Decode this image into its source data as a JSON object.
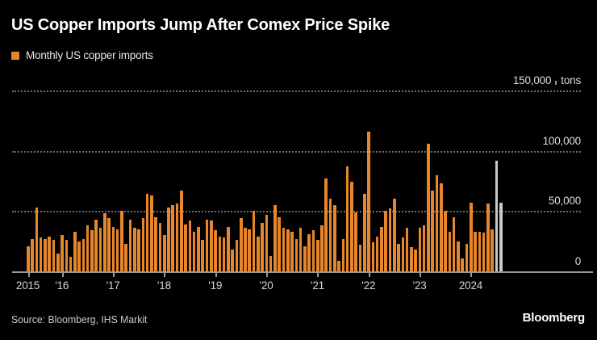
{
  "title": "US Copper Imports Jump After Comex Price Spike",
  "legend": {
    "label": "Monthly US copper imports",
    "swatch_color": "#E8862B"
  },
  "source": "Source: Bloomberg, IHS Markit",
  "brand": "Bloomberg",
  "colors": {
    "background": "#000000",
    "bar": "#E8862B",
    "bar_recent": "#C9C9C9",
    "grid": "#6F6F6F",
    "axis": "#9A9A9A",
    "title_text": "#FFFFFF",
    "axis_text": "#D4D4D4",
    "source_text": "#CCCCCC"
  },
  "y_axis": {
    "unit": "tons",
    "tick_values": [
      150000,
      100000,
      50000,
      0
    ],
    "tick_labels": [
      "150,000",
      "100,000",
      "50,000",
      "0"
    ]
  },
  "x_axis": {
    "tick_labels": [
      "2015",
      "'16",
      "'17",
      "'18",
      "'19",
      "'20",
      "'21",
      "'22",
      "'23",
      "2024"
    ],
    "tick_month_indices": [
      0,
      8,
      20,
      32,
      44,
      56,
      68,
      80,
      92,
      104
    ]
  },
  "chart_data": {
    "type": "bar",
    "title": "US Copper Imports Jump After Comex Price Spike",
    "series_name": "Monthly US copper imports",
    "unit": "tons",
    "ylim": [
      0,
      150000
    ],
    "grid": "dotted-horizontal",
    "legend_position": "top-left",
    "start_month": "2015-05",
    "end_month": "2024-08",
    "highlight_last_n": 2,
    "highlight_color": "#C9C9C9",
    "months": [
      "2015-05",
      "2015-06",
      "2015-07",
      "2015-08",
      "2015-09",
      "2015-10",
      "2015-11",
      "2015-12",
      "2016-01",
      "2016-02",
      "2016-03",
      "2016-04",
      "2016-05",
      "2016-06",
      "2016-07",
      "2016-08",
      "2016-09",
      "2016-10",
      "2016-11",
      "2016-12",
      "2017-01",
      "2017-02",
      "2017-03",
      "2017-04",
      "2017-05",
      "2017-06",
      "2017-07",
      "2017-08",
      "2017-09",
      "2017-10",
      "2017-11",
      "2017-12",
      "2018-01",
      "2018-02",
      "2018-03",
      "2018-04",
      "2018-05",
      "2018-06",
      "2018-07",
      "2018-08",
      "2018-09",
      "2018-10",
      "2018-11",
      "2018-12",
      "2019-01",
      "2019-02",
      "2019-03",
      "2019-04",
      "2019-05",
      "2019-06",
      "2019-07",
      "2019-08",
      "2019-09",
      "2019-10",
      "2019-11",
      "2019-12",
      "2020-01",
      "2020-02",
      "2020-03",
      "2020-04",
      "2020-05",
      "2020-06",
      "2020-07",
      "2020-08",
      "2020-09",
      "2020-10",
      "2020-11",
      "2020-12",
      "2021-01",
      "2021-02",
      "2021-03",
      "2021-04",
      "2021-05",
      "2021-06",
      "2021-07",
      "2021-08",
      "2021-09",
      "2021-10",
      "2021-11",
      "2021-12",
      "2022-01",
      "2022-02",
      "2022-03",
      "2022-04",
      "2022-05",
      "2022-06",
      "2022-07",
      "2022-08",
      "2022-09",
      "2022-10",
      "2022-11",
      "2022-12",
      "2023-01",
      "2023-02",
      "2023-03",
      "2023-04",
      "2023-05",
      "2023-06",
      "2023-07",
      "2023-08",
      "2023-09",
      "2023-10",
      "2023-11",
      "2023-12",
      "2024-01",
      "2024-02",
      "2024-03",
      "2024-04",
      "2024-05",
      "2024-06",
      "2024-07",
      "2024-08"
    ],
    "values": [
      21000,
      27000,
      53000,
      28000,
      27000,
      29000,
      26000,
      15000,
      30000,
      26000,
      12000,
      33000,
      25000,
      27000,
      38000,
      34000,
      43000,
      36000,
      48000,
      44000,
      37000,
      35000,
      50000,
      23000,
      43000,
      36000,
      35000,
      44000,
      64000,
      63000,
      45000,
      40000,
      30000,
      53000,
      55000,
      56000,
      67000,
      39000,
      42000,
      33000,
      37000,
      26000,
      43000,
      42000,
      34000,
      29000,
      28000,
      37000,
      18000,
      26000,
      44000,
      36000,
      35000,
      50000,
      29000,
      40000,
      47000,
      13000,
      55000,
      45000,
      36000,
      35000,
      33000,
      27000,
      36000,
      21000,
      31000,
      34000,
      26000,
      38000,
      77000,
      60000,
      55000,
      9000,
      27000,
      87000,
      74000,
      49000,
      22000,
      64000,
      116000,
      24000,
      29000,
      37000,
      50000,
      52000,
      60000,
      23000,
      28000,
      36000,
      20000,
      18000,
      36000,
      38000,
      106000,
      67000,
      80000,
      73000,
      50000,
      33000,
      45000,
      25000,
      11000,
      23000,
      57000,
      33000,
      33000,
      32000,
      56000,
      35000,
      92000,
      57000
    ]
  }
}
